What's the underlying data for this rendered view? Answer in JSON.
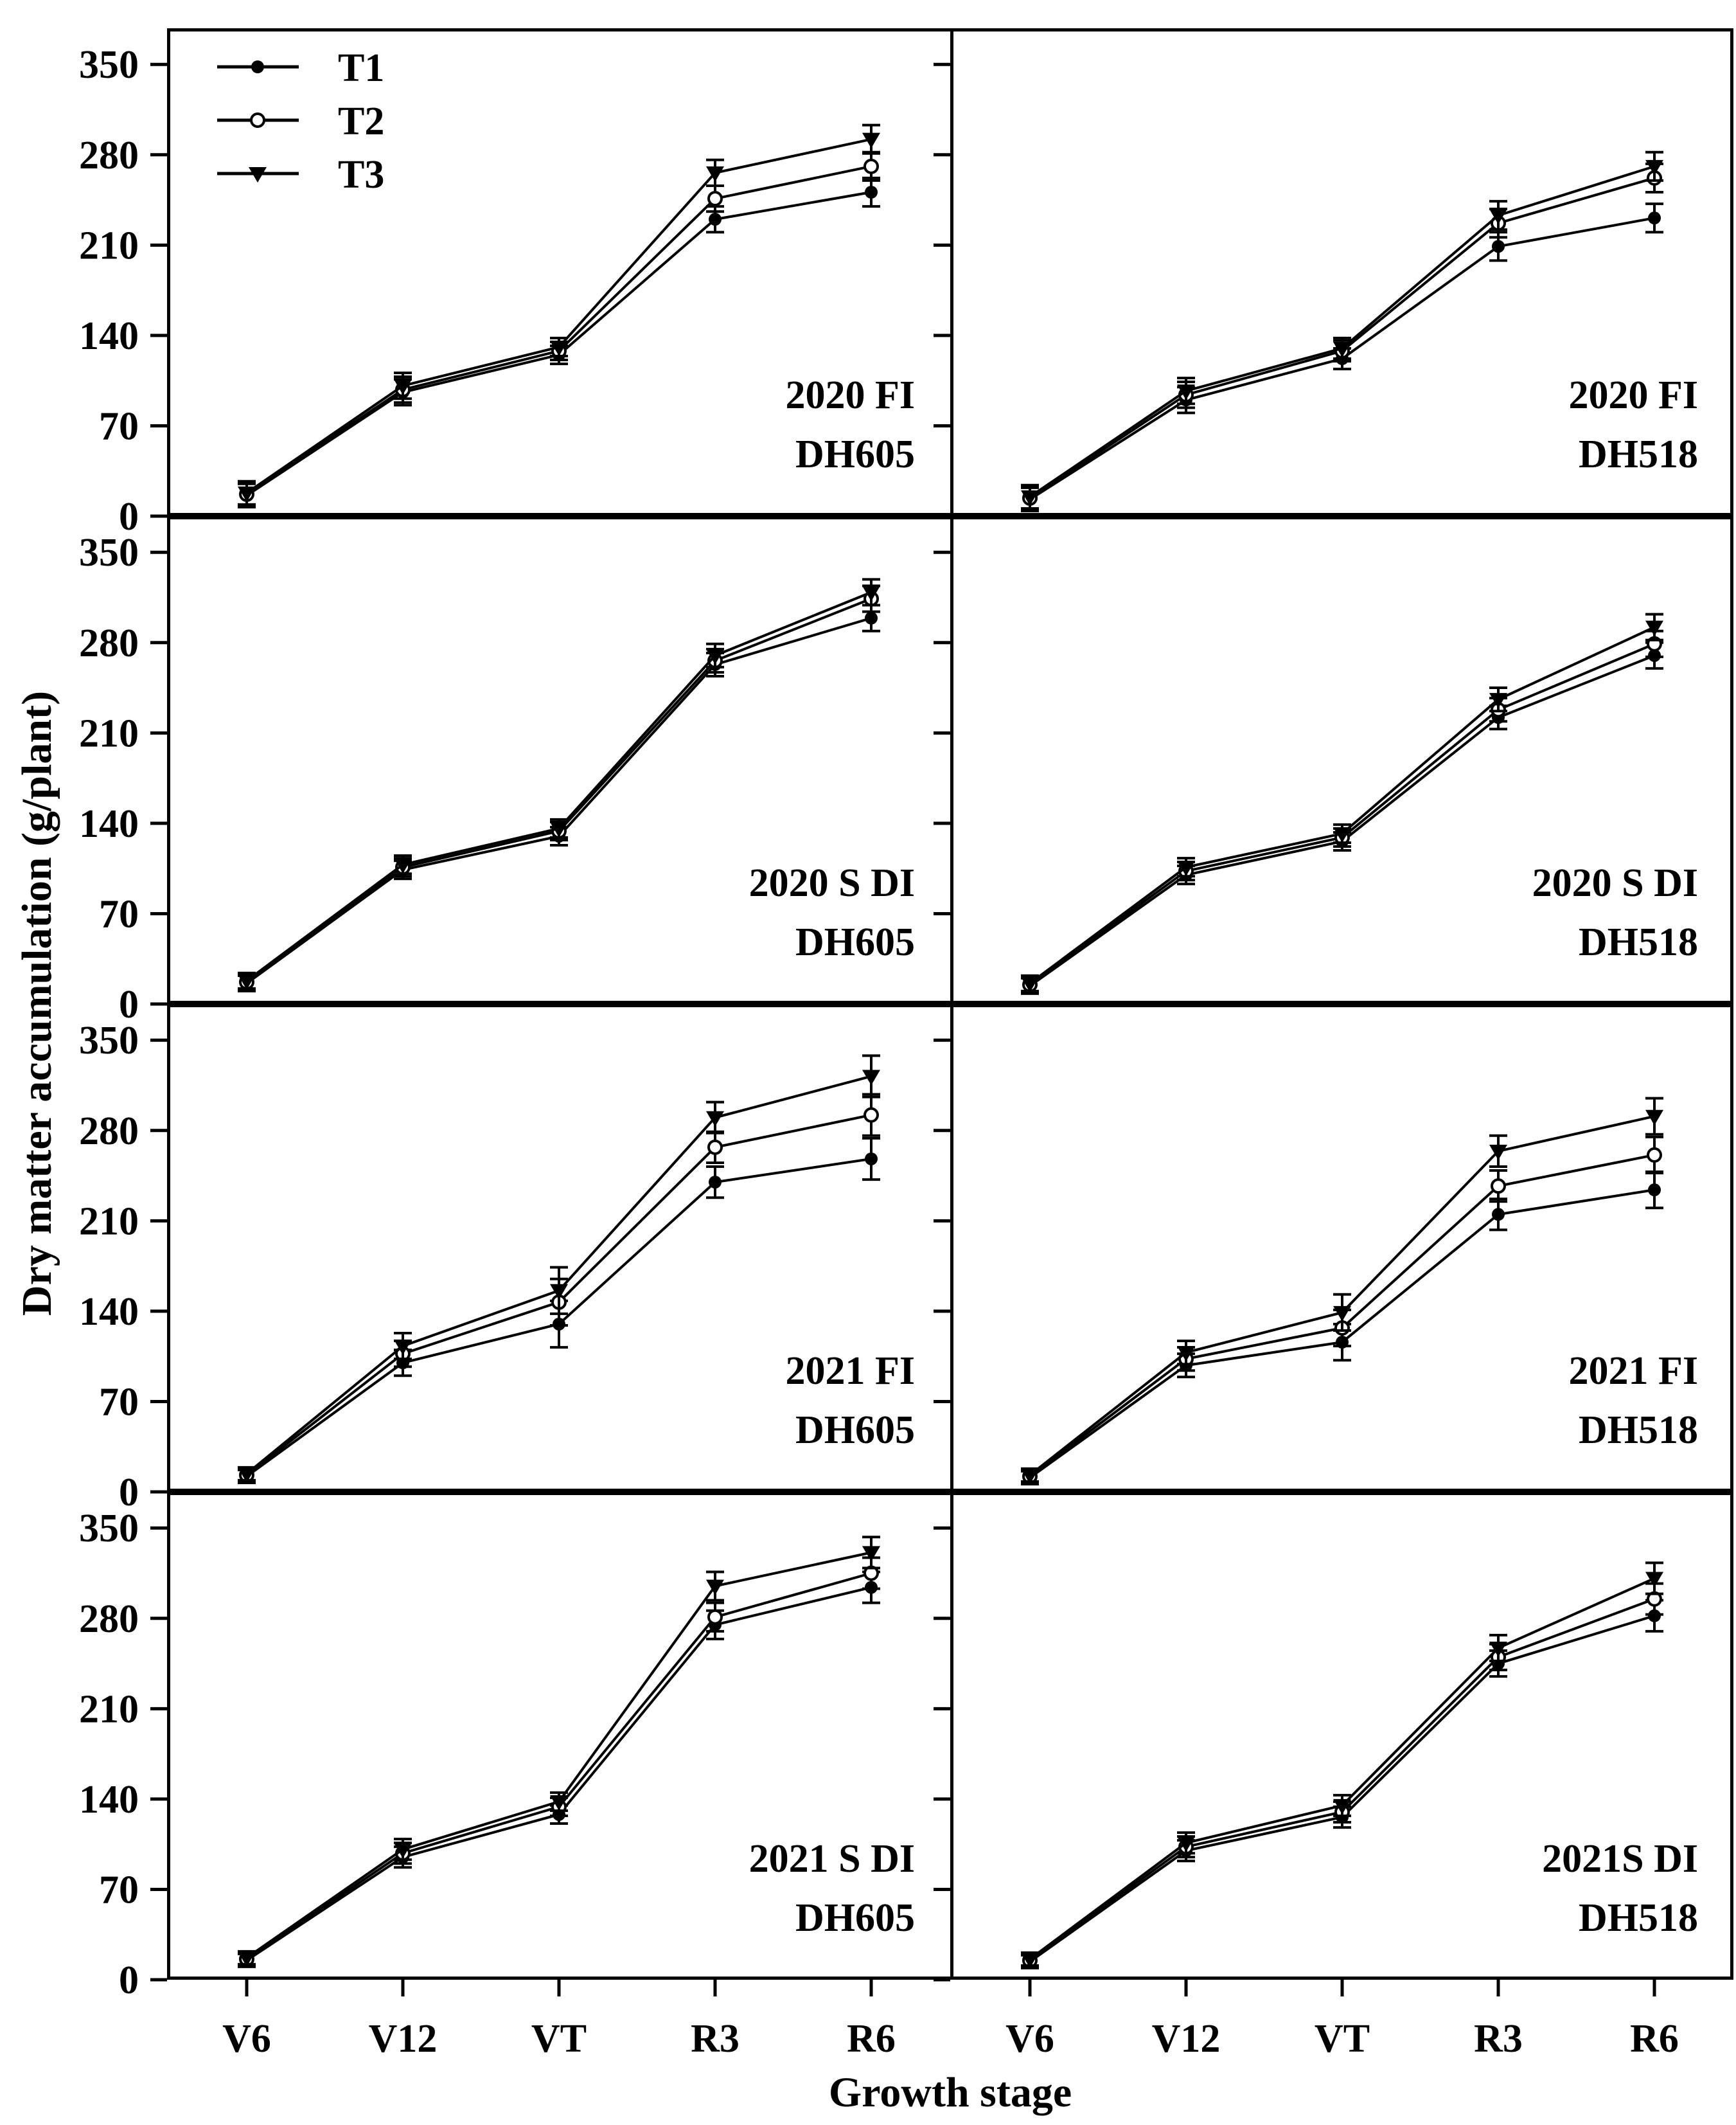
{
  "figure": {
    "y_axis_title": "Dry matter accumulation (g/plant)",
    "x_axis_title": "Growth stage",
    "background_color": "#ffffff",
    "line_color": "#000000"
  },
  "legend": {
    "position": "top-left-first-panel",
    "items": [
      {
        "label": "T1",
        "marker": "filled-circle"
      },
      {
        "label": "T2",
        "marker": "open-circle"
      },
      {
        "label": "T3",
        "marker": "filled-triangle-down"
      }
    ]
  },
  "chart_data": [
    {
      "type": "line",
      "label_line1": "2020 FI",
      "label_line2": "DH605",
      "row": 0,
      "col": 0,
      "categories": [
        "V6",
        "V12",
        "VT",
        "R3",
        "R6"
      ],
      "yticks": [
        0,
        70,
        140,
        210,
        280,
        350
      ],
      "ylim": [
        0,
        378
      ],
      "errors": [
        9,
        10,
        7,
        10,
        11
      ],
      "series": [
        {
          "name": "T1",
          "marker": "filled-circle",
          "values": [
            16,
            96,
            125,
            230,
            251
          ]
        },
        {
          "name": "T2",
          "marker": "open-circle",
          "values": [
            17,
            98,
            128,
            246,
            271
          ]
        },
        {
          "name": "T3",
          "marker": "filled-triangle-down",
          "values": [
            18,
            101,
            131,
            266,
            292
          ]
        }
      ]
    },
    {
      "type": "line",
      "label_line1": "2020 FI",
      "label_line2": "DH518",
      "row": 0,
      "col": 1,
      "categories": [
        "V6",
        "V12",
        "VT",
        "R3",
        "R6"
      ],
      "yticks": [
        0,
        70,
        140,
        210,
        280,
        350
      ],
      "ylim": [
        0,
        378
      ],
      "errors": [
        9,
        10,
        8,
        11,
        11
      ],
      "series": [
        {
          "name": "T1",
          "marker": "filled-circle",
          "values": [
            13,
            90,
            122,
            209,
            231
          ]
        },
        {
          "name": "T2",
          "marker": "open-circle",
          "values": [
            14,
            94,
            128,
            227,
            262
          ]
        },
        {
          "name": "T3",
          "marker": "filled-triangle-down",
          "values": [
            15,
            97,
            130,
            233,
            271
          ]
        }
      ]
    },
    {
      "type": "line",
      "label_line1": "2020 S DI",
      "label_line2": "DH605",
      "row": 1,
      "col": 0,
      "categories": [
        "V6",
        "V12",
        "VT",
        "R3",
        "R6"
      ],
      "yticks": [
        0,
        70,
        140,
        210,
        280,
        350
      ],
      "ylim": [
        0,
        378
      ],
      "errors": [
        6,
        7,
        7,
        9,
        10
      ],
      "series": [
        {
          "name": "T1",
          "marker": "filled-circle",
          "values": [
            16,
            104,
            130,
            263,
            299
          ]
        },
        {
          "name": "T2",
          "marker": "open-circle",
          "values": [
            17,
            106,
            134,
            266,
            314
          ]
        },
        {
          "name": "T3",
          "marker": "filled-triangle-down",
          "values": [
            18,
            108,
            136,
            270,
            319
          ]
        }
      ]
    },
    {
      "type": "line",
      "label_line1": "2020 S DI",
      "label_line2": "DH518",
      "row": 1,
      "col": 1,
      "categories": [
        "V6",
        "V12",
        "VT",
        "R3",
        "R6"
      ],
      "yticks": [
        0,
        70,
        140,
        210,
        280,
        350
      ],
      "ylim": [
        0,
        378
      ],
      "errors": [
        6,
        7,
        7,
        9,
        10
      ],
      "series": [
        {
          "name": "T1",
          "marker": "filled-circle",
          "values": [
            14,
            100,
            126,
            222,
            270
          ]
        },
        {
          "name": "T2",
          "marker": "open-circle",
          "values": [
            15,
            103,
            129,
            228,
            279
          ]
        },
        {
          "name": "T3",
          "marker": "filled-triangle-down",
          "values": [
            16,
            106,
            132,
            236,
            292
          ]
        }
      ]
    },
    {
      "type": "line",
      "label_line1": "2021 FI",
      "label_line2": "DH605",
      "row": 2,
      "col": 0,
      "categories": [
        "V6",
        "V12",
        "VT",
        "R3",
        "R6"
      ],
      "yticks": [
        0,
        70,
        140,
        210,
        280,
        350
      ],
      "ylim": [
        0,
        378
      ],
      "errors": [
        5,
        10,
        18,
        12,
        16
      ],
      "series": [
        {
          "name": "T1",
          "marker": "filled-circle",
          "values": [
            12,
            100,
            130,
            240,
            258
          ]
        },
        {
          "name": "T2",
          "marker": "open-circle",
          "values": [
            13,
            107,
            147,
            267,
            292
          ]
        },
        {
          "name": "T3",
          "marker": "filled-triangle-down",
          "values": [
            14,
            113,
            156,
            290,
            322
          ]
        }
      ]
    },
    {
      "type": "line",
      "label_line1": "2021 FI",
      "label_line2": "DH518",
      "row": 2,
      "col": 1,
      "categories": [
        "V6",
        "V12",
        "VT",
        "R3",
        "R6"
      ],
      "yticks": [
        0,
        70,
        140,
        210,
        280,
        350
      ],
      "ylim": [
        0,
        378
      ],
      "errors": [
        5,
        9,
        14,
        12,
        14
      ],
      "series": [
        {
          "name": "T1",
          "marker": "filled-circle",
          "values": [
            11,
            98,
            116,
            215,
            234
          ]
        },
        {
          "name": "T2",
          "marker": "open-circle",
          "values": [
            12,
            103,
            127,
            237,
            261
          ]
        },
        {
          "name": "T3",
          "marker": "filled-triangle-down",
          "values": [
            13,
            108,
            139,
            264,
            291
          ]
        }
      ]
    },
    {
      "type": "line",
      "label_line1": "2021 S DI",
      "label_line2": "DH605",
      "row": 3,
      "col": 0,
      "categories": [
        "V6",
        "V12",
        "VT",
        "R3",
        "R6"
      ],
      "yticks": [
        0,
        70,
        140,
        210,
        280,
        350
      ],
      "ylim": [
        0,
        378
      ],
      "errors": [
        5,
        8,
        7,
        11,
        12
      ],
      "series": [
        {
          "name": "T1",
          "marker": "filled-circle",
          "values": [
            15,
            95,
            128,
            275,
            304
          ]
        },
        {
          "name": "T2",
          "marker": "open-circle",
          "values": [
            16,
            98,
            134,
            281,
            315
          ]
        },
        {
          "name": "T3",
          "marker": "filled-triangle-down",
          "values": [
            17,
            101,
            138,
            305,
            331
          ]
        }
      ]
    },
    {
      "type": "line",
      "label_line1": "2021S DI",
      "label_line2": "DH518",
      "row": 3,
      "col": 1,
      "categories": [
        "V6",
        "V12",
        "VT",
        "R3",
        "R6"
      ],
      "yticks": [
        0,
        70,
        140,
        210,
        280,
        350
      ],
      "ylim": [
        0,
        378
      ],
      "errors": [
        5,
        8,
        8,
        10,
        12
      ],
      "series": [
        {
          "name": "T1",
          "marker": "filled-circle",
          "values": [
            14,
            100,
            126,
            245,
            282
          ]
        },
        {
          "name": "T2",
          "marker": "open-circle",
          "values": [
            15,
            103,
            130,
            250,
            295
          ]
        },
        {
          "name": "T3",
          "marker": "filled-triangle-down",
          "values": [
            16,
            106,
            135,
            257,
            311
          ]
        }
      ]
    }
  ]
}
